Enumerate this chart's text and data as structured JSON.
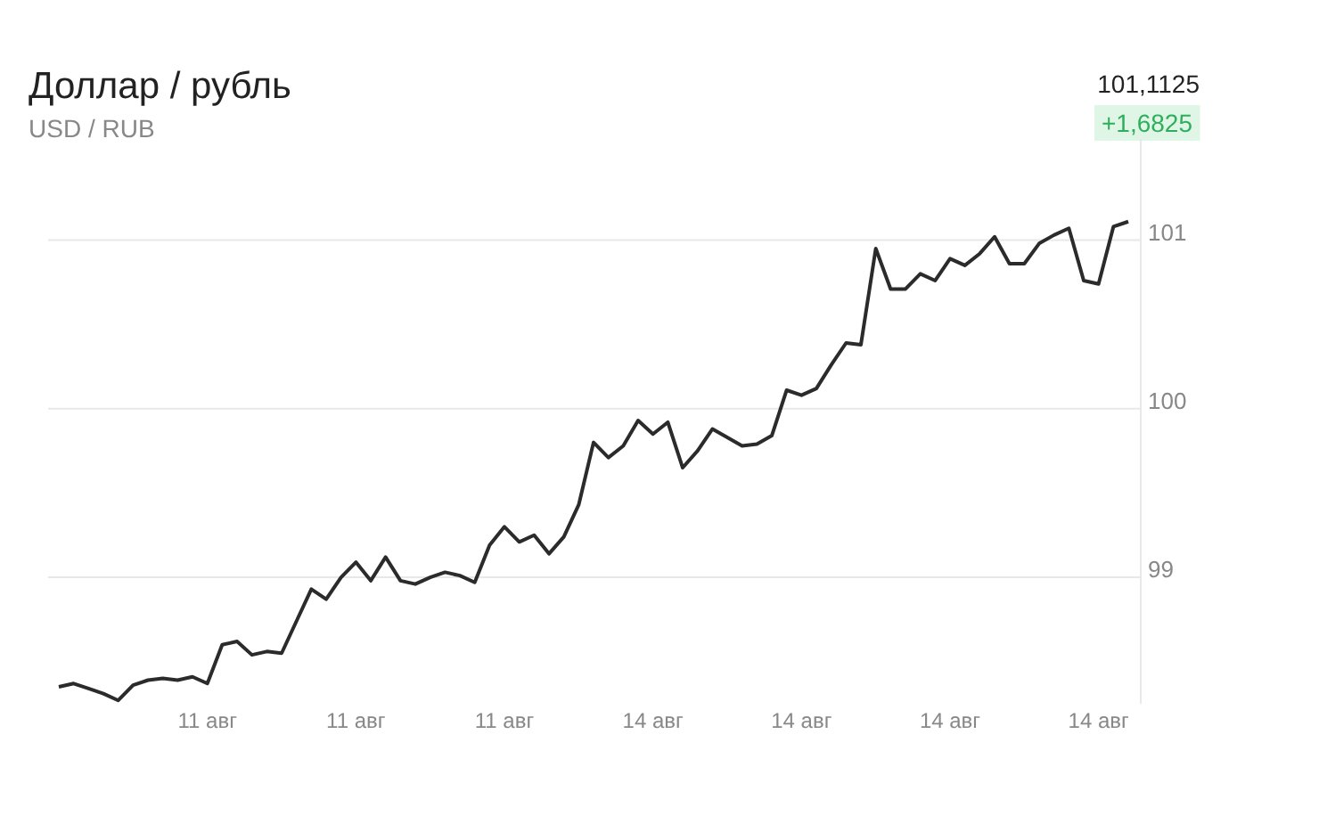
{
  "chart_data": {
    "type": "line",
    "title": "Доллар / рубль",
    "subtitle": "USD / RUB",
    "annotations": [
      "101,1125",
      "+1,6825"
    ],
    "categories": [
      null,
      null,
      null,
      null,
      null,
      null,
      null,
      null,
      null,
      null,
      "11 авг",
      null,
      null,
      null,
      null,
      null,
      null,
      null,
      null,
      null,
      "11 авг",
      null,
      null,
      null,
      null,
      null,
      null,
      null,
      null,
      null,
      "11 авг",
      null,
      null,
      null,
      null,
      null,
      null,
      null,
      null,
      null,
      "14 авг",
      null,
      null,
      null,
      null,
      null,
      null,
      null,
      null,
      null,
      "14 авг",
      null,
      null,
      null,
      null,
      null,
      null,
      null,
      null,
      null,
      "14 авг",
      null,
      null,
      null,
      null,
      null,
      null,
      null,
      null,
      null,
      "14 авг",
      null,
      null
    ],
    "series": [
      {
        "color": "#2b2b2b",
        "values": [
          98.35,
          98.37,
          98.34,
          98.31,
          98.27,
          98.36,
          98.39,
          98.4,
          98.39,
          98.41,
          98.37,
          98.6,
          98.62,
          98.54,
          98.56,
          98.55,
          98.74,
          98.93,
          98.87,
          99.0,
          99.09,
          98.98,
          99.12,
          98.98,
          98.96,
          99.0,
          99.03,
          99.01,
          98.97,
          99.19,
          99.3,
          99.21,
          99.25,
          99.14,
          99.24,
          99.43,
          99.8,
          99.71,
          99.78,
          99.93,
          99.85,
          99.92,
          99.65,
          99.75,
          99.88,
          99.83,
          99.78,
          99.79,
          99.84,
          100.11,
          100.08,
          100.12,
          100.26,
          100.39,
          100.38,
          100.95,
          100.71,
          100.71,
          100.8,
          100.76,
          100.89,
          100.85,
          100.92,
          101.02,
          100.86,
          100.86,
          100.98,
          101.03,
          101.07,
          100.76,
          100.74,
          101.08,
          101.11
        ]
      }
    ],
    "ylim": [
      98.25,
      101.6
    ],
    "yticks": [
      99,
      100,
      101
    ],
    "grid": "y",
    "marker": "none",
    "line_style": "solid"
  }
}
